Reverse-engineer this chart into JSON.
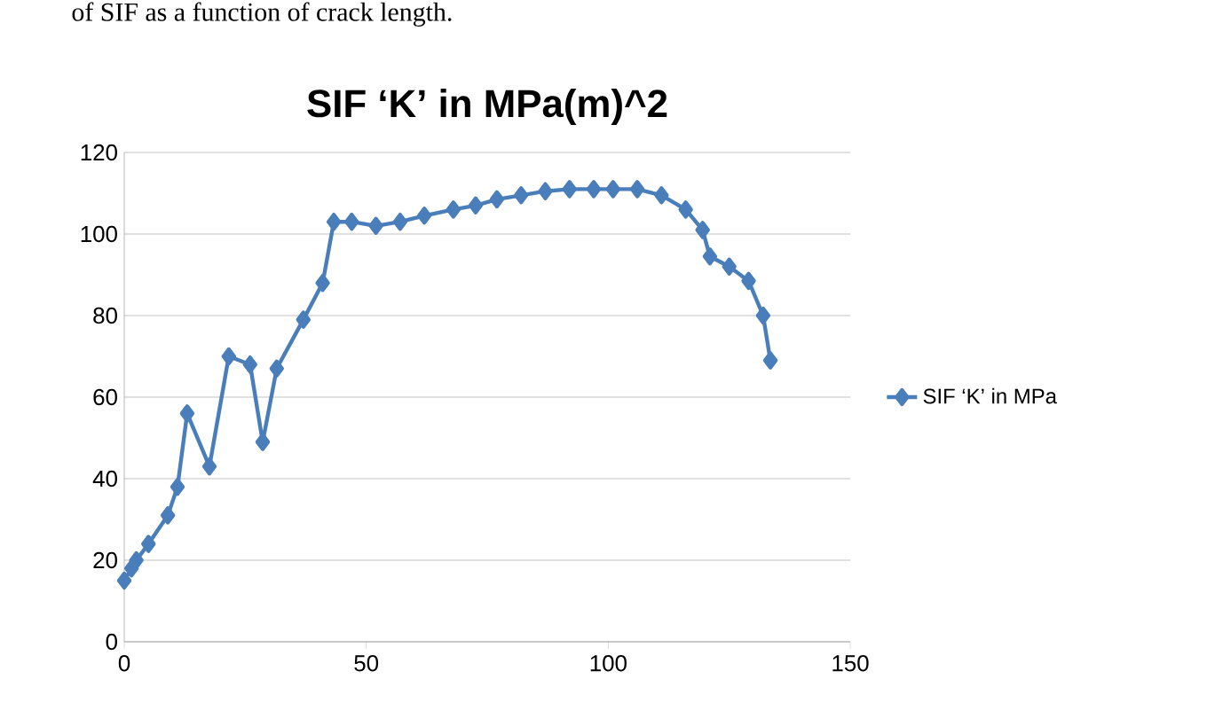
{
  "chart_data": {
    "type": "line",
    "title": "SIF ‘K’ in MPa(m)^2",
    "annotations": [
      "of SIF as a function of crack length."
    ],
    "x": [
      0,
      1.5,
      2.5,
      5,
      9,
      11,
      13,
      17.6,
      21.6,
      26,
      28.6,
      31.5,
      37,
      41,
      43.3,
      47,
      52,
      57,
      62,
      68,
      72.6,
      77,
      82,
      87,
      92,
      97,
      101,
      106,
      111,
      116,
      119.5,
      121,
      125,
      129,
      132,
      133.5
    ],
    "series": [
      {
        "name": "SIF ‘K’ in MPa",
        "color": "#4a7ebb",
        "values": [
          15,
          18,
          20,
          24,
          31,
          38,
          56,
          43,
          70,
          68,
          49,
          67,
          79,
          88,
          103,
          103,
          102,
          103,
          104.5,
          106,
          107,
          108.5,
          109.5,
          110.5,
          111,
          111,
          111,
          111,
          109.5,
          106,
          101,
          94.5,
          92,
          88.5,
          80,
          69
        ]
      }
    ],
    "xlim": [
      0,
      150
    ],
    "xticks": [
      0,
      50,
      100,
      150
    ],
    "ylim": [
      0,
      120
    ],
    "yticks": [
      0,
      20,
      40,
      60,
      80,
      100,
      120
    ],
    "grid": "y",
    "legend": "right",
    "marker": "diamond",
    "line_style": "solid"
  }
}
